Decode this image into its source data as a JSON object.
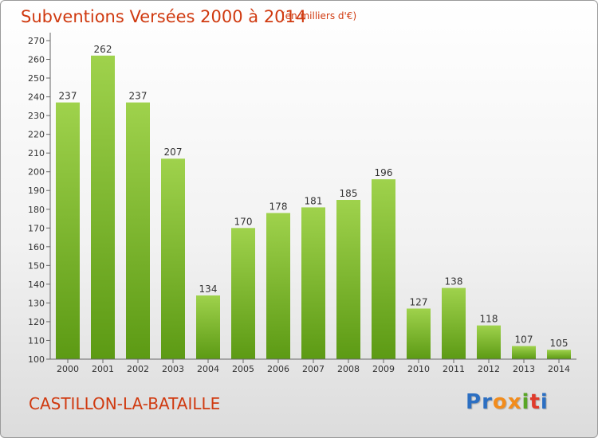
{
  "header": {
    "title": "Subventions Versées 2000 à 2014",
    "unit": "(en milliers d'€)"
  },
  "footer": {
    "commune": "CASTILLON-LA-BATAILLE",
    "logo_letters": [
      {
        "ch": "P",
        "color": "#2c6fc2"
      },
      {
        "ch": "r",
        "color": "#2c6fc2"
      },
      {
        "ch": "o",
        "color": "#f28c1c"
      },
      {
        "ch": "x",
        "color": "#f28c1c"
      },
      {
        "ch": "i",
        "color": "#59a626"
      },
      {
        "ch": "t",
        "color": "#e03b2c"
      },
      {
        "ch": "i",
        "color": "#2c6fc2"
      }
    ]
  },
  "chart_data": {
    "type": "bar",
    "categories": [
      "2000",
      "2001",
      "2002",
      "2003",
      "2004",
      "2005",
      "2006",
      "2007",
      "2008",
      "2009",
      "2010",
      "2011",
      "2012",
      "2013",
      "2014"
    ],
    "values": [
      237,
      262,
      237,
      207,
      134,
      170,
      178,
      181,
      185,
      196,
      127,
      138,
      118,
      107,
      105
    ],
    "ylim": [
      100,
      270
    ],
    "ytick_step": 10,
    "grid": false,
    "colors": {
      "bar_top": "#9fd24c",
      "bar_bottom": "#5c9a14",
      "text": "#333333",
      "axis": "#666666",
      "title": "#d03a10"
    }
  }
}
